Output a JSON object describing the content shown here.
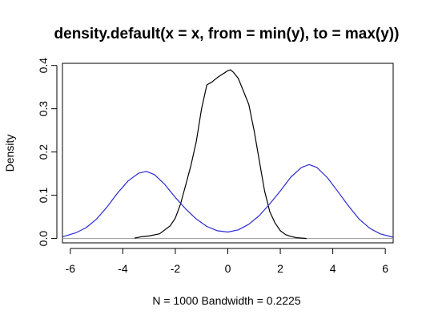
{
  "chart_data": {
    "type": "line",
    "title": "density.default(x = x, from = min(y), to = max(y))",
    "xlabel": "N = 1000   Bandwidth = 0.2225",
    "ylabel": "Density",
    "xlim": [
      -6.3,
      6.3
    ],
    "ylim": [
      -0.01,
      0.405
    ],
    "xticks": [
      -6,
      -4,
      -2,
      0,
      2,
      4,
      6
    ],
    "xtick_labels": [
      "-6",
      "-4",
      "-2",
      "0",
      "2",
      "4",
      "6"
    ],
    "yticks": [
      0.0,
      0.1,
      0.2,
      0.3,
      0.4
    ],
    "ytick_labels": [
      "0.0",
      "0.1",
      "0.2",
      "0.3",
      "0.4"
    ],
    "grid": false,
    "baseline": 0,
    "series": [
      {
        "color": "#000000",
        "x": [
          -3.55,
          -3.3,
          -3.0,
          -2.6,
          -2.2,
          -2.0,
          -1.8,
          -1.6,
          -1.4,
          -1.2,
          -1.0,
          -0.8,
          -0.6,
          -0.4,
          -0.2,
          0.0,
          0.1,
          0.2,
          0.4,
          0.6,
          0.8,
          1.0,
          1.2,
          1.4,
          1.6,
          1.8,
          2.0,
          2.2,
          2.4,
          2.6,
          3.0
        ],
        "y": [
          0.001,
          0.004,
          0.006,
          0.011,
          0.029,
          0.047,
          0.08,
          0.125,
          0.17,
          0.225,
          0.3,
          0.355,
          0.362,
          0.372,
          0.38,
          0.388,
          0.39,
          0.385,
          0.37,
          0.34,
          0.31,
          0.25,
          0.18,
          0.11,
          0.062,
          0.036,
          0.018,
          0.009,
          0.005,
          0.002,
          0.0
        ]
      },
      {
        "color": "#2b2bd0",
        "x": [
          -6.3,
          -5.8,
          -5.4,
          -5.0,
          -4.6,
          -4.2,
          -3.8,
          -3.4,
          -3.1,
          -2.8,
          -2.4,
          -2.0,
          -1.6,
          -1.2,
          -0.8,
          -0.4,
          0.0,
          0.4,
          0.8,
          1.2,
          1.6,
          2.0,
          2.4,
          2.8,
          3.1,
          3.4,
          3.8,
          4.2,
          4.6,
          5.0,
          5.4,
          5.8,
          6.3
        ],
        "y": [
          0.004,
          0.013,
          0.025,
          0.045,
          0.073,
          0.105,
          0.133,
          0.151,
          0.155,
          0.148,
          0.125,
          0.095,
          0.068,
          0.045,
          0.028,
          0.018,
          0.015,
          0.02,
          0.033,
          0.053,
          0.08,
          0.11,
          0.142,
          0.164,
          0.171,
          0.164,
          0.14,
          0.108,
          0.075,
          0.045,
          0.024,
          0.011,
          0.003
        ]
      }
    ]
  }
}
